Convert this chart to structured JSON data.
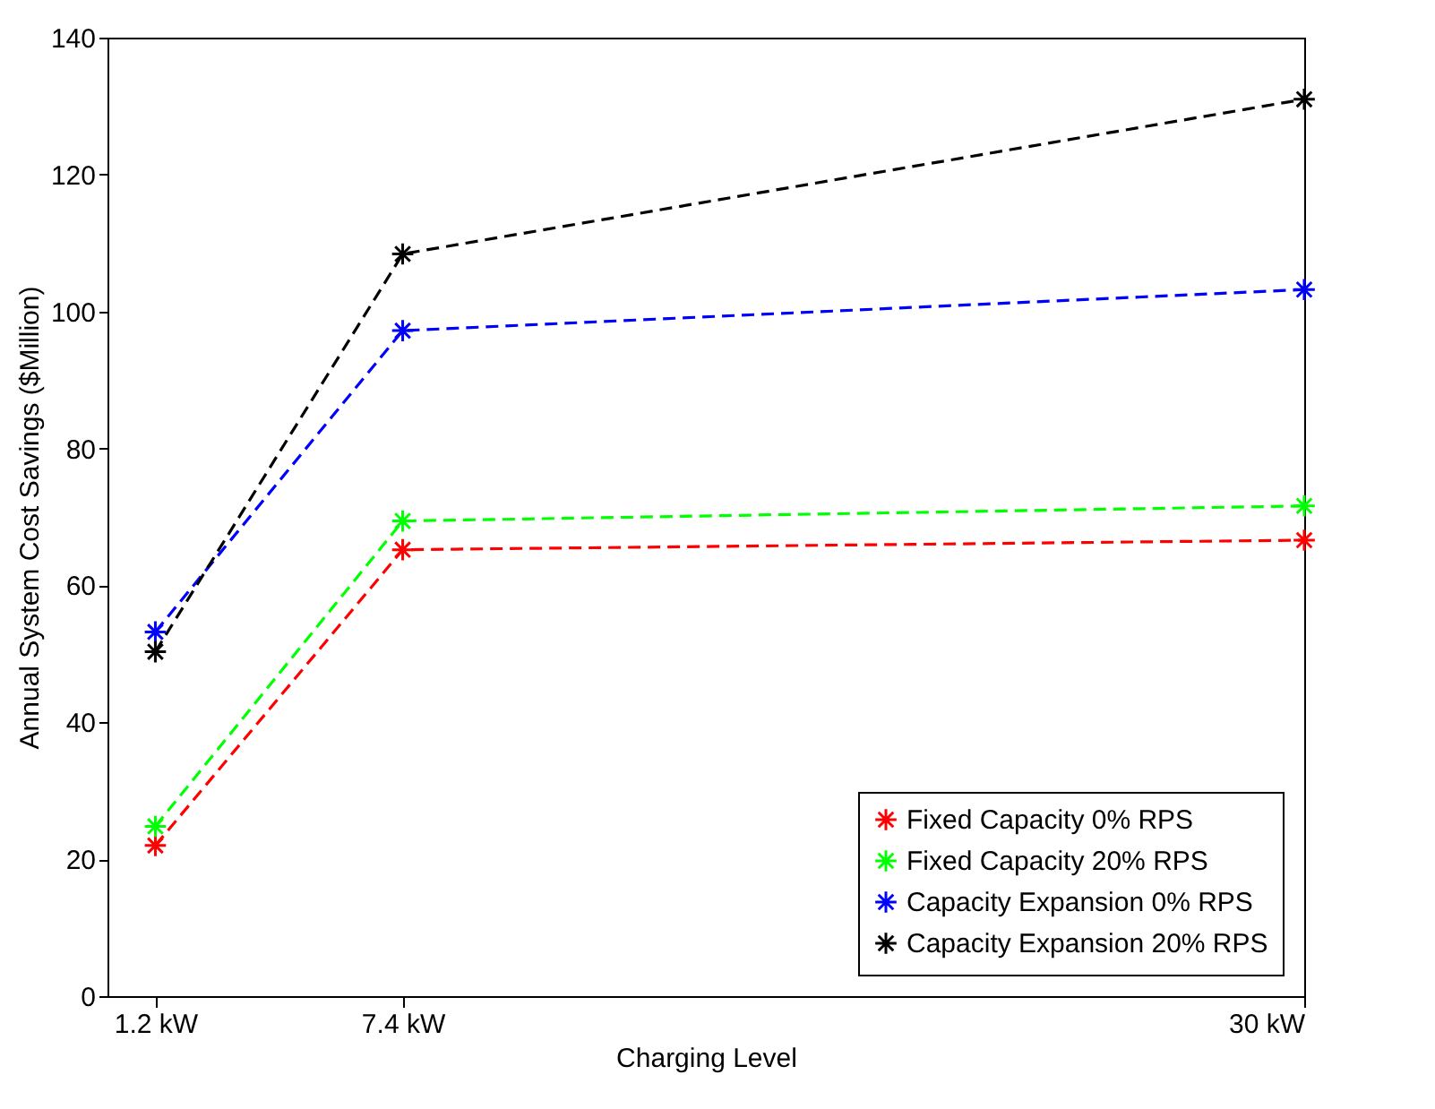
{
  "chart_data": {
    "type": "line",
    "xlabel": "Charging Level",
    "ylabel": "Annual System Cost Savings ($Million)",
    "x": [
      1.2,
      7.4,
      30
    ],
    "xlim": [
      0,
      30
    ],
    "xticks": [
      {
        "value": 1.2,
        "label": "1.2 kW"
      },
      {
        "value": 7.4,
        "label": "7.4 kW"
      },
      {
        "value": 30,
        "label": "30 kW"
      }
    ],
    "ylim": [
      0,
      140
    ],
    "yticks": [
      0,
      20,
      40,
      60,
      80,
      100,
      120,
      140
    ],
    "series": [
      {
        "name": "Fixed Capacity 0% RPS",
        "color": "#ff0000",
        "values": [
          22,
          65.2,
          66.6
        ]
      },
      {
        "name": "Fixed Capacity 20% RPS",
        "color": "#00ff00",
        "values": [
          24.8,
          69.4,
          71.6
        ]
      },
      {
        "name": "Capacity Expansion 0% RPS",
        "color": "#0000ff",
        "values": [
          53.2,
          97.2,
          103.2
        ]
      },
      {
        "name": "Capacity Expansion 20% RPS",
        "color": "#000000",
        "values": [
          50.3,
          108.4,
          131
        ]
      }
    ],
    "marker": "cross",
    "line_style": "dashed",
    "legend": "bottom right",
    "grid": false
  }
}
